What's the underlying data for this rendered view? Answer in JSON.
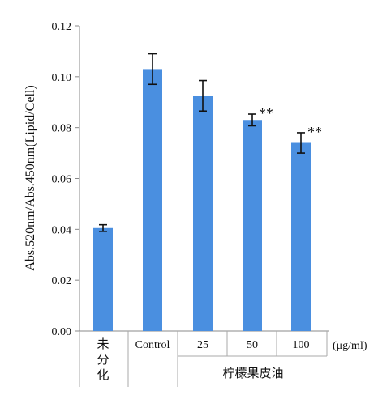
{
  "chart_data": {
    "type": "bar",
    "ylabel": "Abs.520nm/Abs.450nm(Lipid/Cell)",
    "xunit": "(μg/ml)",
    "ylim": [
      0,
      0.12
    ],
    "yticks": [
      "0.00",
      "0.02",
      "0.04",
      "0.06",
      "0.08",
      "0.10",
      "0.12"
    ],
    "categories": [
      "未分化",
      "Control",
      "25",
      "50",
      "100"
    ],
    "values": [
      0.0405,
      0.103,
      0.0925,
      0.083,
      0.074
    ],
    "errors": [
      0.0013,
      0.006,
      0.006,
      0.0023,
      0.004
    ],
    "significance": [
      "",
      "",
      "",
      "**",
      "**"
    ],
    "group_label": "柠檬果皮油",
    "bar_color": "#4a8fe0",
    "grid": false
  }
}
